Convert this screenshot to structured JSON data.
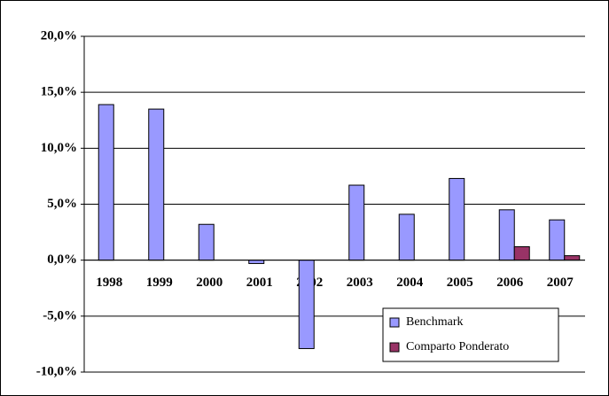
{
  "chart_data": {
    "type": "bar",
    "categories": [
      "1998",
      "1999",
      "2000",
      "2001",
      "2002",
      "2003",
      "2004",
      "2005",
      "2006",
      "2007"
    ],
    "series": [
      {
        "name": "Benchmark",
        "color": "#9999ff",
        "values": [
          13.9,
          13.5,
          3.2,
          -0.3,
          -7.9,
          6.7,
          4.1,
          7.3,
          4.5,
          3.6
        ]
      },
      {
        "name": "Comparto Ponderato",
        "color": "#993366",
        "values": [
          null,
          null,
          null,
          null,
          null,
          null,
          null,
          null,
          1.2,
          0.4
        ]
      }
    ],
    "ylim": [
      -10,
      20
    ],
    "yticks": [
      {
        "value": -10,
        "label": "-10,0%"
      },
      {
        "value": -5,
        "label": "-5,0%"
      },
      {
        "value": 0,
        "label": "0,0%"
      },
      {
        "value": 5,
        "label": "5,0%"
      },
      {
        "value": 10,
        "label": "10,0%"
      },
      {
        "value": 15,
        "label": "15,0%"
      },
      {
        "value": 20,
        "label": "20,0%"
      }
    ],
    "grid": true,
    "legend": "lower right"
  }
}
